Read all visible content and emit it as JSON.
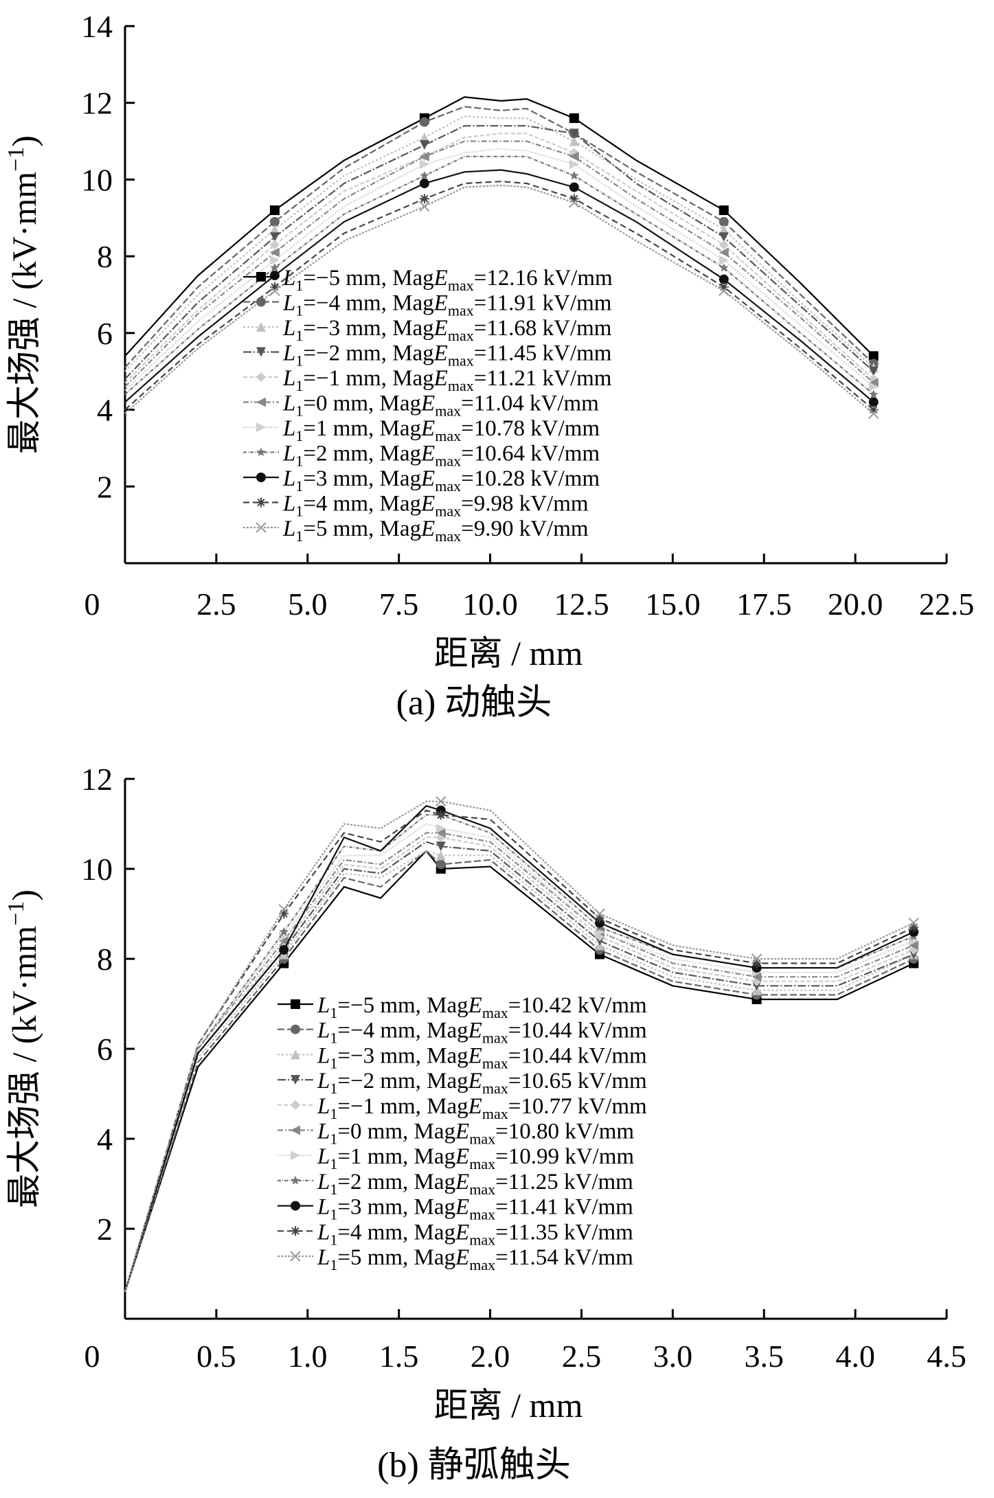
{
  "chart_data": [
    {
      "type": "line",
      "caption": "(a)  动触头",
      "xlabel": "距离 / mm",
      "ylabel": "最大场强 / (kV·mm",
      "ylabel_sup": "−1",
      "ylabel_close": ")",
      "xlim": [
        0,
        22.5
      ],
      "ylim": [
        0,
        14
      ],
      "xticks": [
        "0",
        "2.5",
        "5.0",
        "7.5",
        "10.0",
        "12.5",
        "15.0",
        "17.5",
        "20.0",
        "22.5"
      ],
      "yticks": [
        "2",
        "4",
        "6",
        "8",
        "10",
        "12",
        "14"
      ],
      "marker_x": [
        4.1,
        8.2,
        12.3,
        16.4,
        20.5
      ],
      "legend_position": "center",
      "series": [
        {
          "name": "L1=−5 mm, MagEmax=12.16 kV/mm",
          "subscript": "1",
          "prefix": "=−5 mm, Mag",
          "emax": "=12.16 kV/mm",
          "color": "#000000",
          "dash": "",
          "marker": "square",
          "x": [
            0,
            2,
            4.1,
            6,
            8.2,
            9.3,
            10.3,
            11,
            12.3,
            14,
            16.4,
            18.5,
            20.5
          ],
          "y": [
            5.4,
            7.5,
            9.2,
            10.5,
            11.6,
            12.15,
            12.05,
            12.1,
            11.6,
            10.5,
            9.2,
            7.3,
            5.4
          ]
        },
        {
          "name": "L1=−4 mm, MagEmax=11.91 kV/mm",
          "subscript": "1",
          "prefix": "=−4 mm, Mag",
          "emax": "=11.91 kV/mm",
          "color": "#666666",
          "dash": "10 4",
          "marker": "circle",
          "x": [
            0,
            2,
            4.1,
            6,
            8.2,
            9.3,
            10.3,
            11,
            12.3,
            14,
            16.4,
            18.5,
            20.5
          ],
          "y": [
            5.1,
            7.2,
            8.9,
            10.3,
            11.5,
            11.9,
            11.8,
            11.85,
            11.2,
            10.2,
            8.9,
            7.0,
            5.2
          ]
        },
        {
          "name": "L1=−3 mm, MagEmax=11.68 kV/mm",
          "subscript": "1",
          "prefix": "=−3 mm, Mag",
          "emax": "=11.68 kV/mm",
          "color": "#c0c0c0",
          "dash": "3 3",
          "marker": "triangle",
          "x": [
            0,
            2,
            4.1,
            6,
            8.2,
            9.3,
            10.3,
            11,
            12.3,
            14,
            16.4,
            18.5,
            20.5
          ],
          "y": [
            5.0,
            7.0,
            8.7,
            10.1,
            11.1,
            11.65,
            11.6,
            11.6,
            11.0,
            10.0,
            8.7,
            6.8,
            5.1
          ]
        },
        {
          "name": "L1=−2 mm, MagEmax=11.45 kV/mm",
          "subscript": "1",
          "prefix": "=−2 mm, Mag",
          "emax": "=11.45 kV/mm",
          "color": "#555555",
          "dash": "12 3 2 3",
          "marker": "triangle-down",
          "x": [
            0,
            2,
            4.1,
            6,
            8.2,
            9.3,
            10.3,
            11,
            12.3,
            14,
            16.4,
            18.5,
            20.5
          ],
          "y": [
            4.8,
            6.8,
            8.5,
            9.9,
            10.9,
            11.4,
            11.4,
            11.4,
            11.2,
            9.9,
            8.5,
            6.7,
            5.0
          ]
        },
        {
          "name": "L1=−1 mm, MagEmax=11.21 kV/mm",
          "subscript": "1",
          "prefix": "=−1 mm, Mag",
          "emax": "=11.21 kV/mm",
          "color": "#cccccc",
          "dash": "6 3",
          "marker": "diamond",
          "x": [
            0,
            2,
            4.1,
            6,
            8.2,
            9.3,
            10.3,
            11,
            12.3,
            14,
            16.4,
            18.5,
            20.5
          ],
          "y": [
            4.7,
            6.6,
            8.3,
            9.7,
            10.6,
            11.1,
            11.2,
            11.2,
            10.7,
            9.7,
            8.3,
            6.5,
            4.8
          ]
        },
        {
          "name": "L1=0 mm, MagEmax=11.04 kV/mm",
          "subscript": "1",
          "prefix": "=0 mm, Mag",
          "emax": "=11.04 kV/mm",
          "color": "#888888",
          "dash": "8 3 2 3",
          "marker": "triangle-left",
          "x": [
            0,
            2,
            4.1,
            6,
            8.2,
            9.3,
            10.3,
            11,
            12.3,
            14,
            16.4,
            18.5,
            20.5
          ],
          "y": [
            4.6,
            6.5,
            8.1,
            9.5,
            10.6,
            11.0,
            11.0,
            11.0,
            10.6,
            9.5,
            8.1,
            6.4,
            4.7
          ]
        },
        {
          "name": "L1=1 mm, MagEmax=10.78 kV/mm",
          "subscript": "1",
          "prefix": "=1 mm, Mag",
          "emax": "=10.78 kV/mm",
          "color": "#d0d0d0",
          "dash": "2 2",
          "marker": "triangle-right",
          "x": [
            0,
            2,
            4.1,
            6,
            8.2,
            9.3,
            10.3,
            11,
            12.3,
            14,
            16.4,
            18.5,
            20.5
          ],
          "y": [
            4.5,
            6.3,
            7.9,
            9.3,
            10.4,
            10.7,
            10.8,
            10.75,
            10.4,
            9.3,
            7.9,
            6.2,
            4.6
          ]
        },
        {
          "name": "L1=2 mm, MagEmax=10.64 kV/mm",
          "subscript": "1",
          "prefix": "=2 mm, Mag",
          "emax": "=10.64 kV/mm",
          "color": "#777777",
          "dash": "5 2 1 2",
          "marker": "star",
          "x": [
            0,
            2,
            4.1,
            6,
            8.2,
            9.3,
            10.3,
            11,
            12.3,
            14,
            16.4,
            18.5,
            20.5
          ],
          "y": [
            4.4,
            6.1,
            7.7,
            9.1,
            10.1,
            10.6,
            10.6,
            10.6,
            10.1,
            9.1,
            7.7,
            6.0,
            4.4
          ]
        },
        {
          "name": "L1=3 mm, MagEmax=10.28 kV/mm",
          "subscript": "1",
          "prefix": "=3 mm, Mag",
          "emax": "=10.28 kV/mm",
          "color": "#111111",
          "dash": "",
          "marker": "circle-filled",
          "x": [
            0,
            2,
            4.1,
            6,
            8.2,
            9.3,
            10.3,
            11,
            12.3,
            14,
            16.4,
            18.5,
            20.5
          ],
          "y": [
            4.2,
            5.9,
            7.5,
            8.9,
            9.9,
            10.2,
            10.25,
            10.15,
            9.8,
            8.9,
            7.4,
            5.8,
            4.2
          ]
        },
        {
          "name": "L1=4 mm, MagEmax=9.98 kV/mm",
          "subscript": "1",
          "prefix": "=4 mm, Mag",
          "emax": "=9.98 kV/mm",
          "color": "#444444",
          "dash": "9 5",
          "marker": "asterisk",
          "x": [
            0,
            2,
            4.1,
            6,
            8.2,
            9.3,
            10.3,
            11,
            12.3,
            14,
            16.4,
            18.5,
            20.5
          ],
          "y": [
            4.0,
            5.7,
            7.2,
            8.6,
            9.5,
            9.9,
            9.95,
            9.9,
            9.5,
            8.6,
            7.2,
            5.6,
            4.0
          ]
        },
        {
          "name": "L1=5 mm, MagEmax=9.90 kV/mm",
          "subscript": "1",
          "prefix": "=5 mm, Mag",
          "emax": "=9.90 kV/mm",
          "color": "#999999",
          "dash": "3 2",
          "marker": "x",
          "x": [
            0,
            2,
            4.1,
            6,
            8.2,
            9.3,
            10.3,
            11,
            12.3,
            14,
            16.4,
            18.5,
            20.5
          ],
          "y": [
            3.9,
            5.6,
            7.1,
            8.4,
            9.3,
            9.8,
            9.85,
            9.8,
            9.4,
            8.4,
            7.1,
            5.5,
            3.9
          ]
        }
      ]
    },
    {
      "type": "line",
      "caption": "(b)  静弧触头",
      "xlabel": "距离 / mm",
      "ylabel": "最大场强 / (kV·mm",
      "ylabel_sup": "−1",
      "ylabel_close": ")",
      "xlim": [
        0,
        4.5
      ],
      "ylim": [
        0,
        12
      ],
      "xticks": [
        "0",
        "0.5",
        "1.0",
        "1.5",
        "2.0",
        "2.5",
        "3.0",
        "3.5",
        "4.0",
        "4.5"
      ],
      "yticks": [
        "2",
        "4",
        "6",
        "8",
        "10",
        "12"
      ],
      "marker_x": [
        0.87,
        1.73,
        2.6,
        3.46,
        4.32
      ],
      "legend_position": "center-right",
      "series": [
        {
          "name": "L1=−5 mm, MagEmax=10.42 kV/mm",
          "subscript": "1",
          "prefix": "=−5 mm, Mag",
          "emax": "=10.42 kV/mm",
          "color": "#000000",
          "dash": "",
          "marker": "square",
          "x": [
            0,
            0.4,
            0.87,
            1.2,
            1.4,
            1.65,
            1.73,
            2.0,
            2.6,
            3.0,
            3.46,
            3.9,
            4.32
          ],
          "y": [
            0.6,
            5.6,
            7.9,
            9.6,
            9.35,
            10.4,
            10.0,
            10.05,
            8.1,
            7.4,
            7.1,
            7.1,
            7.9
          ]
        },
        {
          "name": "L1=−4 mm, MagEmax=10.44 kV/mm",
          "subscript": "1",
          "prefix": "=−4 mm, Mag",
          "emax": "=10.44 kV/mm",
          "color": "#666666",
          "dash": "10 4",
          "marker": "circle",
          "x": [
            0,
            0.4,
            0.87,
            1.2,
            1.4,
            1.65,
            1.73,
            2.0,
            2.6,
            3.0,
            3.46,
            3.9,
            4.32
          ],
          "y": [
            0.6,
            5.7,
            8.0,
            9.8,
            9.6,
            10.4,
            10.1,
            10.2,
            8.2,
            7.5,
            7.2,
            7.2,
            8.0
          ]
        },
        {
          "name": "L1=−3 mm, MagEmax=10.44 kV/mm",
          "subscript": "1",
          "prefix": "=−3 mm, Mag",
          "emax": "=10.44 kV/mm",
          "color": "#c0c0c0",
          "dash": "3 3",
          "marker": "triangle",
          "x": [
            0,
            0.4,
            0.87,
            1.2,
            1.4,
            1.65,
            1.73,
            2.0,
            2.6,
            3.0,
            3.46,
            3.9,
            4.32
          ],
          "y": [
            0.6,
            5.8,
            8.1,
            9.9,
            9.8,
            10.4,
            10.3,
            10.3,
            8.3,
            7.6,
            7.3,
            7.3,
            8.1
          ]
        },
        {
          "name": "L1=−2 mm, MagEmax=10.65 kV/mm",
          "subscript": "1",
          "prefix": "=−2 mm, Mag",
          "emax": "=10.65 kV/mm",
          "color": "#555555",
          "dash": "12 3 2 3",
          "marker": "triangle-down",
          "x": [
            0,
            0.4,
            0.87,
            1.2,
            1.4,
            1.65,
            1.73,
            2.0,
            2.6,
            3.0,
            3.46,
            3.9,
            4.32
          ],
          "y": [
            0.6,
            5.9,
            8.2,
            10.0,
            9.9,
            10.6,
            10.5,
            10.4,
            8.4,
            7.7,
            7.4,
            7.4,
            8.1
          ]
        },
        {
          "name": "L1=−1 mm, MagEmax=10.77 kV/mm",
          "subscript": "1",
          "prefix": "=−1 mm, Mag",
          "emax": "=10.77 kV/mm",
          "color": "#cccccc",
          "dash": "6 3",
          "marker": "diamond",
          "x": [
            0,
            0.4,
            0.87,
            1.2,
            1.4,
            1.65,
            1.73,
            2.0,
            2.6,
            3.0,
            3.46,
            3.9,
            4.32
          ],
          "y": [
            0.6,
            5.9,
            8.3,
            10.1,
            10.0,
            10.7,
            10.7,
            10.5,
            8.5,
            7.8,
            7.5,
            7.5,
            8.2
          ]
        },
        {
          "name": "L1=0 mm, MagEmax=10.80 kV/mm",
          "subscript": "1",
          "prefix": "=0 mm, Mag",
          "emax": "=10.80 kV/mm",
          "color": "#888888",
          "dash": "8 3 2 3",
          "marker": "triangle-left",
          "x": [
            0,
            0.4,
            0.87,
            1.2,
            1.4,
            1.65,
            1.73,
            2.0,
            2.6,
            3.0,
            3.46,
            3.9,
            4.32
          ],
          "y": [
            0.6,
            6.0,
            8.4,
            10.2,
            10.1,
            10.8,
            10.8,
            10.6,
            8.6,
            7.9,
            7.6,
            7.6,
            8.3
          ]
        },
        {
          "name": "L1=1 mm, MagEmax=10.99 kV/mm",
          "subscript": "1",
          "prefix": "=1 mm, Mag",
          "emax": "=10.99 kV/mm",
          "color": "#d0d0d0",
          "dash": "2 2",
          "marker": "triangle-right",
          "x": [
            0,
            0.4,
            0.87,
            1.2,
            1.4,
            1.65,
            1.73,
            2.0,
            2.6,
            3.0,
            3.46,
            3.9,
            4.32
          ],
          "y": [
            0.6,
            6.0,
            8.5,
            10.3,
            10.3,
            11.0,
            10.9,
            10.7,
            8.6,
            8.0,
            7.7,
            7.7,
            8.4
          ]
        },
        {
          "name": "L1=2 mm, MagEmax=11.25 kV/mm",
          "subscript": "1",
          "prefix": "=2 mm, Mag",
          "emax": "=11.25 kV/mm",
          "color": "#777777",
          "dash": "5 2 1 2",
          "marker": "star",
          "x": [
            0,
            0.4,
            0.87,
            1.2,
            1.4,
            1.65,
            1.73,
            2.0,
            2.6,
            3.0,
            3.46,
            3.9,
            4.32
          ],
          "y": [
            0.6,
            6.0,
            8.6,
            10.5,
            10.4,
            11.2,
            11.2,
            10.8,
            8.7,
            8.1,
            7.8,
            7.8,
            8.5
          ]
        },
        {
          "name": "L1=3 mm, MagEmax=11.41 kV/mm",
          "subscript": "1",
          "prefix": "=3 mm, Mag",
          "emax": "=11.41 kV/mm",
          "color": "#111111",
          "dash": "",
          "marker": "circle-filled",
          "x": [
            0,
            0.4,
            0.87,
            1.2,
            1.4,
            1.65,
            1.73,
            2.0,
            2.6,
            3.0,
            3.46,
            3.9,
            4.32
          ],
          "y": [
            0.6,
            5.9,
            8.2,
            10.7,
            10.4,
            11.4,
            11.3,
            10.9,
            8.8,
            8.1,
            7.8,
            7.8,
            8.6
          ]
        },
        {
          "name": "L1=4 mm, MagEmax=11.35 kV/mm",
          "subscript": "1",
          "prefix": "=4 mm, Mag",
          "emax": "=11.35 kV/mm",
          "color": "#444444",
          "dash": "9 5",
          "marker": "asterisk",
          "x": [
            0,
            0.4,
            0.87,
            1.2,
            1.4,
            1.65,
            1.73,
            2.0,
            2.6,
            3.0,
            3.46,
            3.9,
            4.32
          ],
          "y": [
            0.6,
            6.1,
            9.0,
            10.8,
            10.6,
            11.3,
            11.2,
            11.1,
            8.9,
            8.2,
            7.9,
            7.9,
            8.7
          ]
        },
        {
          "name": "L1=5 mm, MagEmax=11.54 kV/mm",
          "subscript": "1",
          "prefix": "=5 mm, Mag",
          "emax": "=11.54 kV/mm",
          "color": "#999999",
          "dash": "3 2",
          "marker": "x",
          "x": [
            0,
            0.4,
            0.87,
            1.2,
            1.4,
            1.65,
            1.73,
            2.0,
            2.6,
            3.0,
            3.46,
            3.9,
            4.32
          ],
          "y": [
            0.6,
            6.1,
            9.1,
            11.0,
            10.9,
            11.5,
            11.5,
            11.3,
            9.0,
            8.3,
            8.0,
            8.0,
            8.8
          ]
        }
      ]
    }
  ]
}
